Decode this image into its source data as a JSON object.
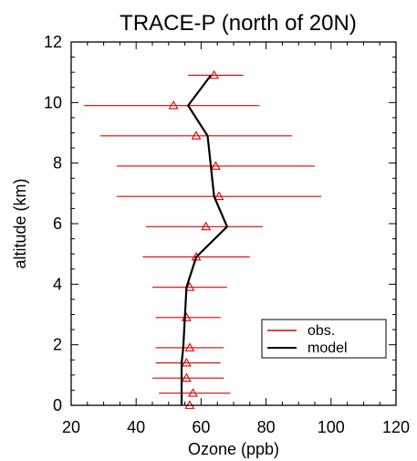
{
  "chart_data": {
    "type": "line",
    "title": "TRACE-P (north of 20N)",
    "xlabel": "Ozone (ppb)",
    "ylabel": "altitude (km)",
    "xlim": [
      20,
      120
    ],
    "ylim": [
      0,
      12
    ],
    "xticks": [
      20,
      40,
      60,
      80,
      100,
      120
    ],
    "yticks": [
      0,
      2,
      4,
      6,
      8,
      10,
      12
    ],
    "grid": false,
    "legend_position": "bottom-right",
    "colors": {
      "obs": "#e00000",
      "model": "#000000",
      "axes": "#000000"
    },
    "series": [
      {
        "name": "obs.",
        "style": "triangle markers with horizontal range bars",
        "points": [
          {
            "alt": 0.0,
            "value": 56.5,
            "xmin": 45,
            "xmax": 68
          },
          {
            "alt": 0.4,
            "value": 57.5,
            "xmin": 47,
            "xmax": 69
          },
          {
            "alt": 0.9,
            "value": 55.5,
            "xmin": 45,
            "xmax": 67
          },
          {
            "alt": 1.4,
            "value": 55.5,
            "xmin": 46,
            "xmax": 66
          },
          {
            "alt": 1.9,
            "value": 56.5,
            "xmin": 46,
            "xmax": 67
          },
          {
            "alt": 2.9,
            "value": 55.5,
            "xmin": 46,
            "xmax": 66
          },
          {
            "alt": 3.9,
            "value": 56.5,
            "xmin": 45,
            "xmax": 68
          },
          {
            "alt": 4.9,
            "value": 58.5,
            "xmin": 42,
            "xmax": 75
          },
          {
            "alt": 5.9,
            "value": 61.5,
            "xmin": 43,
            "xmax": 79
          },
          {
            "alt": 6.9,
            "value": 65.5,
            "xmin": 34,
            "xmax": 97
          },
          {
            "alt": 7.9,
            "value": 64.5,
            "xmin": 34,
            "xmax": 95
          },
          {
            "alt": 8.9,
            "value": 58.5,
            "xmin": 29,
            "xmax": 88
          },
          {
            "alt": 9.9,
            "value": 51.5,
            "xmin": 24,
            "xmax": 78
          },
          {
            "alt": 10.9,
            "value": 64.0,
            "xmin": 56,
            "xmax": 73
          }
        ]
      },
      {
        "name": "model",
        "style": "solid line",
        "points": [
          {
            "alt": 0.0,
            "value": 54.0
          },
          {
            "alt": 0.4,
            "value": 54.0
          },
          {
            "alt": 0.9,
            "value": 54.0
          },
          {
            "alt": 1.4,
            "value": 54.0
          },
          {
            "alt": 1.9,
            "value": 54.5
          },
          {
            "alt": 2.9,
            "value": 55.0
          },
          {
            "alt": 3.9,
            "value": 55.5
          },
          {
            "alt": 4.9,
            "value": 58.5
          },
          {
            "alt": 5.9,
            "value": 68.0
          },
          {
            "alt": 6.9,
            "value": 64.0
          },
          {
            "alt": 7.9,
            "value": 63.0
          },
          {
            "alt": 8.9,
            "value": 62.0
          },
          {
            "alt": 9.9,
            "value": 56.0
          },
          {
            "alt": 10.9,
            "value": 63.0
          }
        ]
      }
    ]
  }
}
